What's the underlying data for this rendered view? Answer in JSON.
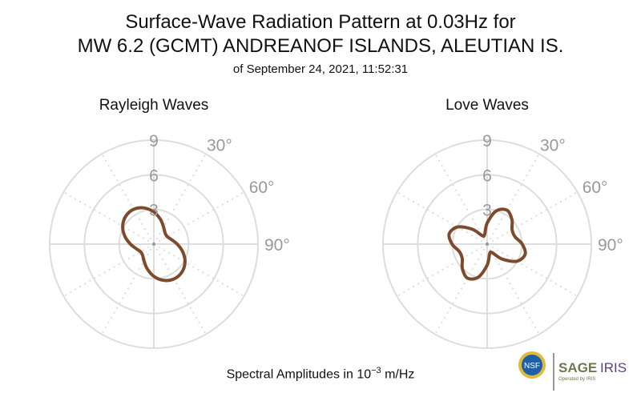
{
  "title_line1": "Surface-Wave Radiation Pattern at 0.03Hz for",
  "title_line2": "MW 6.2 (GCMT) ANDREANOF ISLANDS, ALEUTIAN IS.",
  "subtitle": "of September 24, 2021, 11:52:31",
  "footer": {
    "prefix": "Spectral Amplitudes in 10",
    "exponent": "−3",
    "suffix": " m/Hz"
  },
  "logos": {
    "nsf": "NSF",
    "sage": "SAGE",
    "iris": "IRIS",
    "operated": "Operated by IRIS"
  },
  "colors": {
    "line": "#7d4b2c",
    "grid": "#dddddd",
    "tick": "#999999"
  },
  "chart_data": [
    {
      "type": "polar-line",
      "title": "Rayleigh Waves",
      "rlim": [
        0,
        9
      ],
      "r_ticks": [
        "3",
        "6",
        "9"
      ],
      "angle_ticks": [
        "30°",
        "60°",
        "90°"
      ],
      "angle_convention": "0° at top, clockwise",
      "theta": [
        0,
        15,
        30,
        45,
        60,
        75,
        90,
        105,
        120,
        135,
        150,
        165,
        180,
        195,
        210,
        225,
        240,
        255,
        270,
        285,
        300,
        315,
        330,
        345
      ],
      "r": [
        2.78,
        2.21,
        1.69,
        1.37,
        1.32,
        1.56,
        2.02,
        2.59,
        3.11,
        3.43,
        3.48,
        3.24,
        2.78,
        2.21,
        1.69,
        1.37,
        1.32,
        1.56,
        2.02,
        2.59,
        3.11,
        3.43,
        3.48,
        3.24
      ]
    },
    {
      "type": "polar-line",
      "title": "Love Waves",
      "rlim": [
        0,
        9
      ],
      "r_ticks": [
        "3",
        "6",
        "9"
      ],
      "angle_ticks": [
        "30°",
        "60°",
        "90°"
      ],
      "angle_convention": "0° at top, clockwise",
      "theta": [
        0,
        15,
        30,
        45,
        60,
        75,
        90,
        105,
        120,
        135,
        150,
        165,
        180,
        195,
        210,
        225,
        240,
        255,
        270,
        285,
        300,
        315,
        330,
        345
      ],
      "r": [
        1.82,
        2.96,
        3.4,
        3.03,
        2.49,
        2.49,
        3.03,
        3.4,
        2.96,
        1.82,
        0.85,
        0.85,
        1.82,
        2.96,
        3.4,
        3.03,
        2.49,
        2.49,
        3.03,
        3.4,
        2.96,
        1.82,
        0.85,
        0.85
      ]
    }
  ]
}
